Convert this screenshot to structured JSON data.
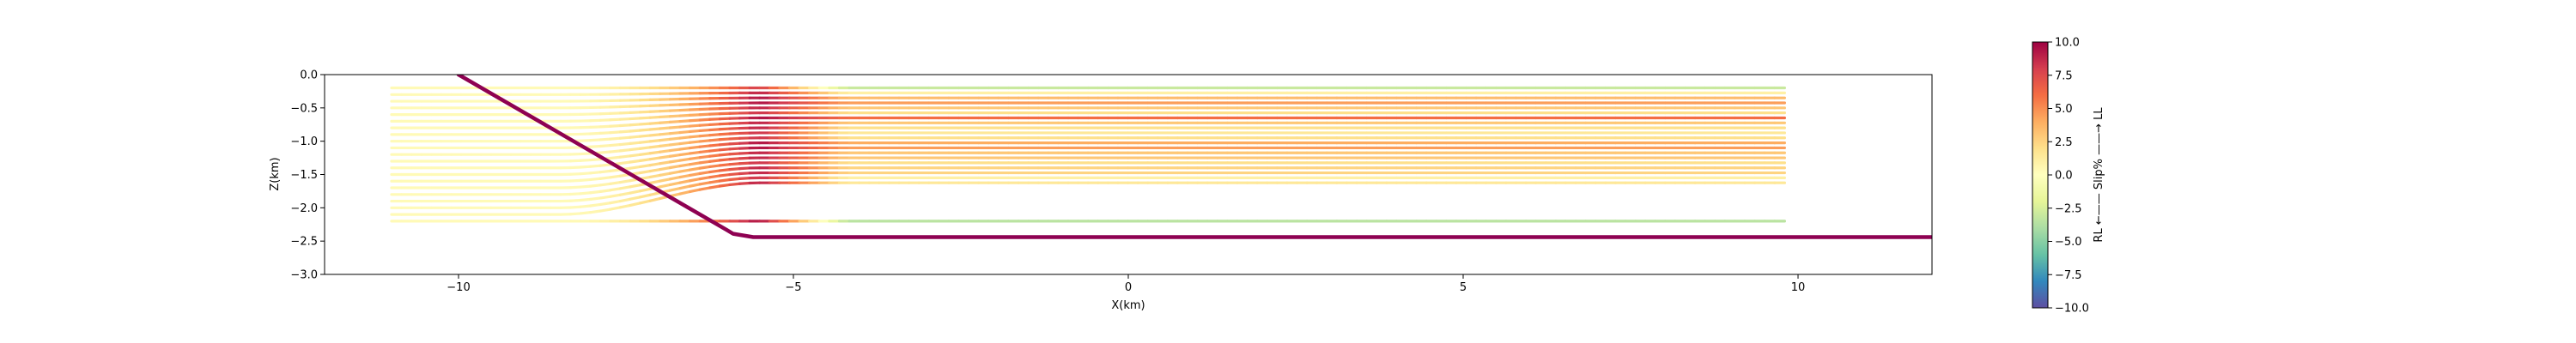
{
  "chart_data": {
    "type": "line",
    "xlabel": "X(km)",
    "ylabel": "Z(km)",
    "xlim": [
      -12,
      12
    ],
    "ylim": [
      -3.0,
      0.0
    ],
    "xticks": [
      -10,
      -5,
      0,
      5,
      10
    ],
    "xtick_labels": [
      "−10",
      "−5",
      "0",
      "5",
      "10"
    ],
    "yticks": [
      0.0,
      -0.5,
      -1.0,
      -1.5,
      -2.0,
      -2.5,
      -3.0
    ],
    "ytick_labels": [
      "0.0",
      "−0.5",
      "−1.0",
      "−1.5",
      "−2.0",
      "−2.5",
      "−3.0"
    ],
    "grid": false,
    "fault": {
      "color": "#8e0152",
      "x": [
        -10.0,
        -6.0,
        -5.9,
        -5.6,
        -5.0,
        12.0
      ],
      "y": [
        0.0,
        -2.33,
        -2.39,
        -2.44,
        -2.44,
        -2.44
      ]
    },
    "streamlines": {
      "x_start": -11.0,
      "x_end": 9.8,
      "bend_center_x": -5.5,
      "start_depths": [
        -0.2,
        -0.3,
        -0.4,
        -0.5,
        -0.6,
        -0.7,
        -0.8,
        -0.9,
        -1.0,
        -1.1,
        -1.2,
        -1.3,
        -1.4,
        -1.5,
        -1.6,
        -1.7,
        -1.8,
        -1.9,
        -2.0,
        -2.1,
        -2.2
      ],
      "end_depths": [
        -0.2,
        -0.275,
        -0.35,
        -0.425,
        -0.5,
        -0.575,
        -0.65,
        -0.725,
        -0.8,
        -0.875,
        -0.95,
        -1.025,
        -1.1,
        -1.175,
        -1.25,
        -1.325,
        -1.4,
        -1.475,
        -1.55,
        -1.625,
        -2.2
      ],
      "slip_percent_after_bend": [
        -3.0,
        1.0,
        3.5,
        4.5,
        3.0,
        2.0,
        6.0,
        3.0,
        2.0,
        1.5,
        2.0,
        4.0,
        4.5,
        3.0,
        3.0,
        2.0,
        2.5,
        2.5,
        1.0,
        1.5,
        -3.5
      ],
      "slip_percent_peak_at_bend": [
        8.0,
        9.0,
        9.5,
        9.5,
        9.0,
        8.5,
        9.5,
        9.0,
        9.0,
        8.5,
        8.5,
        9.5,
        9.5,
        9.0,
        9.0,
        8.5,
        9.0,
        9.0,
        8.5,
        9.0,
        9.5
      ]
    },
    "colorbar": {
      "label": "RL ←—— Slip% ——→ LL",
      "colormap": "Spectral",
      "range": [
        -10.0,
        10.0
      ],
      "ticks": [
        10.0,
        7.5,
        5.0,
        2.5,
        0.0,
        -2.5,
        -5.0,
        -7.5,
        -10.0
      ],
      "tick_labels": [
        "10.0",
        "7.5",
        "5.0",
        "2.5",
        "0.0",
        "−2.5",
        "−5.0",
        "−7.5",
        "−10.0"
      ],
      "stops": [
        "#5e4fa2",
        "#3288bd",
        "#66c2a5",
        "#abdda4",
        "#e6f598",
        "#ffffbf",
        "#fee08b",
        "#fdae61",
        "#f46d43",
        "#d53e4f",
        "#9e0142"
      ]
    }
  }
}
